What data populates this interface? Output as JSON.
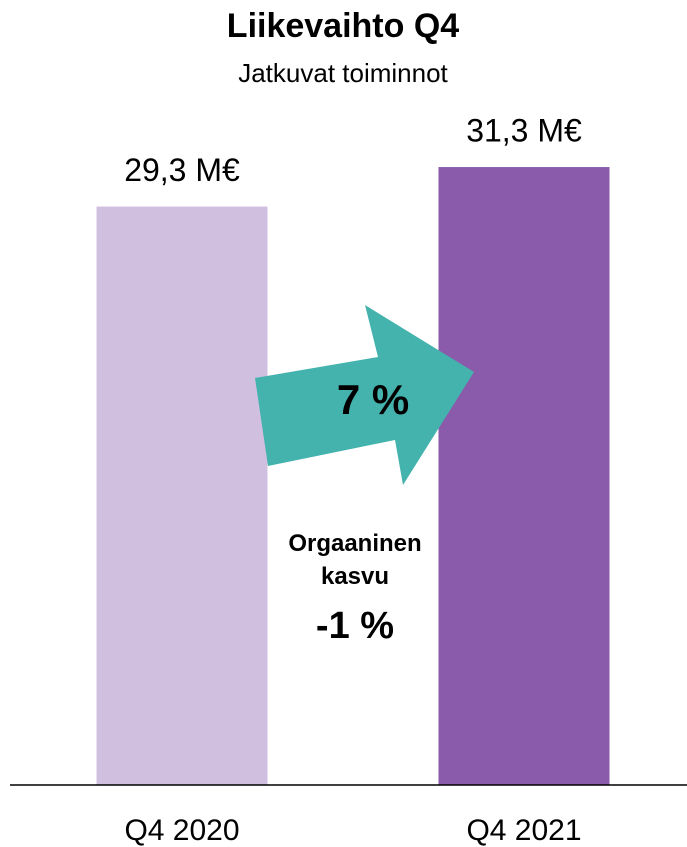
{
  "chart_data": {
    "type": "bar",
    "title": "Liikevaihto Q4",
    "subtitle": "Jatkuvat toiminnot",
    "categories": [
      "Q4 2020",
      "Q4 2021"
    ],
    "values": [
      29.3,
      31.3
    ],
    "value_labels": [
      "29,3 M€",
      "31,3 M€"
    ],
    "colors": [
      "#d1bfe0",
      "#8a5aab"
    ],
    "ylim": [
      0,
      35
    ],
    "annotations": {
      "growth": "7 %",
      "organic_label": "Orgaaninen kasvu",
      "organic_value": "-1 %",
      "arrow_color": "#45b3ad"
    }
  }
}
